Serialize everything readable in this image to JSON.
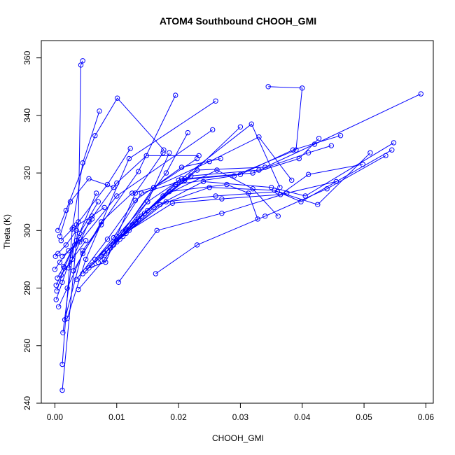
{
  "chart_data": {
    "type": "line",
    "title": "ATOM4 Southbound CHOOH_GMI",
    "xlabel": "CHOOH_GMI",
    "ylabel": "Theta (K)",
    "xlim": [
      -0.0022,
      0.0612
    ],
    "ylim": [
      240,
      366
    ],
    "x_ticks": [
      0.0,
      0.01,
      0.02,
      0.03,
      0.04,
      0.05,
      0.06
    ],
    "x_tick_labels": [
      "0.00",
      "0.01",
      "0.02",
      "0.03",
      "0.04",
      "0.05",
      "0.06"
    ],
    "y_ticks": [
      240,
      260,
      280,
      300,
      320,
      340,
      360
    ],
    "y_tick_labels": [
      "240",
      "260",
      "280",
      "300",
      "320",
      "340",
      "360"
    ],
    "grid": false,
    "legend": "none",
    "color": "#0000ff",
    "series": [
      {
        "x": [
          0.0012,
          0.0038,
          0.0042,
          0.0045
        ],
        "y": [
          244.5,
          303.0,
          357.5,
          359.0
        ]
      },
      {
        "x": [
          0.0012,
          0.0028,
          0.0045,
          0.0072
        ],
        "y": [
          253.5,
          300.5,
          323.5,
          341.5
        ]
      },
      {
        "x": [
          0.0013,
          0.0035,
          0.0085,
          0.0122
        ],
        "y": [
          264.5,
          302.0,
          316.0,
          328.5
        ]
      },
      {
        "x": [
          0.0016,
          0.0045,
          0.0135,
          0.0195
        ],
        "y": [
          269.0,
          293.0,
          320.5,
          347.0
        ]
      },
      {
        "x": [
          0.002,
          0.005,
          0.012,
          0.026
        ],
        "y": [
          269.5,
          290.0,
          325.0,
          345.0
        ]
      },
      {
        "x": [
          0.0038,
          0.008,
          0.015,
          0.0185
        ],
        "y": [
          279.5,
          290.0,
          310.0,
          327.0
        ]
      },
      {
        "x": [
          0.0045,
          0.009,
          0.018,
          0.0215
        ],
        "y": [
          285.0,
          294.0,
          320.0,
          334.0
        ]
      },
      {
        "x": [
          0.0055,
          0.0082,
          0.013,
          0.0175
        ],
        "y": [
          287.0,
          289.0,
          313.0,
          327.0
        ]
      },
      {
        "x": [
          0.0005,
          0.0018,
          0.0065,
          0.0101,
          0.0176
        ],
        "y": [
          300.0,
          307.0,
          333.0,
          346.0,
          328.0
        ]
      },
      {
        "x": [
          0.0012,
          0.004,
          0.01,
          0.0255
        ],
        "y": [
          291.0,
          296.0,
          312.0,
          335.0
        ]
      },
      {
        "x": [
          0.0022,
          0.0055,
          0.01,
          0.0148,
          0.0233
        ],
        "y": [
          287.0,
          303.0,
          316.5,
          326.0,
          326.0
        ]
      },
      {
        "x": [
          0.003,
          0.0075,
          0.0125,
          0.016,
          0.023
        ],
        "y": [
          286.0,
          303.0,
          313.0,
          315.0,
          325.0
        ]
      },
      {
        "x": [
          0.0035,
          0.0085,
          0.013,
          0.0205,
          0.0268
        ],
        "y": [
          283.0,
          297.0,
          310.5,
          322.0,
          325.0
        ]
      },
      {
        "x": [
          0.005,
          0.0095,
          0.014,
          0.021,
          0.03
        ],
        "y": [
          286.0,
          297.5,
          313.0,
          317.5,
          336.0
        ]
      },
      {
        "x": [
          0.006,
          0.01,
          0.015,
          0.0205,
          0.0318,
          0.0364
        ],
        "y": [
          288.0,
          298.0,
          310.0,
          318.0,
          337.0,
          315.0
        ]
      },
      {
        "x": [
          0.007,
          0.011,
          0.016,
          0.025,
          0.033,
          0.0383
        ],
        "y": [
          289.0,
          299.5,
          315.0,
          324.0,
          332.5,
          317.5
        ]
      },
      {
        "x": [
          0.0065,
          0.0115,
          0.0175,
          0.0262,
          0.032,
          0.0361
        ],
        "y": [
          290.0,
          300.5,
          312.0,
          321.0,
          314.5,
          305.0
        ]
      },
      {
        "x": [
          0.0075,
          0.0125,
          0.0185,
          0.0278,
          0.0313,
          0.0328
        ],
        "y": [
          291.0,
          302.0,
          313.5,
          316.0,
          313.0,
          304.0
        ]
      },
      {
        "x": [
          0.008,
          0.013,
          0.0195,
          0.029,
          0.039,
          0.04,
          0.0345
        ],
        "y": [
          292.0,
          303.0,
          316.0,
          319.0,
          328.0,
          349.5,
          350.0
        ]
      },
      {
        "x": [
          0.0085,
          0.0135,
          0.02,
          0.03,
          0.0385,
          0.0462
        ],
        "y": [
          293.0,
          304.0,
          317.5,
          319.5,
          328.0,
          333.0
        ]
      },
      {
        "x": [
          0.009,
          0.014,
          0.021,
          0.032,
          0.0395,
          0.0427
        ],
        "y": [
          294.0,
          305.0,
          318.0,
          320.0,
          325.0,
          332.0
        ]
      },
      {
        "x": [
          0.0095,
          0.0145,
          0.022,
          0.033,
          0.041,
          0.0447
        ],
        "y": [
          295.0,
          306.0,
          319.0,
          321.0,
          327.0,
          329.5
        ]
      },
      {
        "x": [
          0.01,
          0.015,
          0.023,
          0.034,
          0.042,
          0.0592
        ],
        "y": [
          296.0,
          307.0,
          321.0,
          322.0,
          330.0,
          347.5
        ]
      },
      {
        "x": [
          0.0105,
          0.016,
          0.024,
          0.035,
          0.0405,
          0.0548
        ],
        "y": [
          297.0,
          308.0,
          317.0,
          315.0,
          312.0,
          330.5
        ]
      },
      {
        "x": [
          0.011,
          0.017,
          0.025,
          0.0355,
          0.0398,
          0.0545
        ],
        "y": [
          298.0,
          309.0,
          315.0,
          314.0,
          310.0,
          328.0
        ]
      },
      {
        "x": [
          0.0115,
          0.018,
          0.026,
          0.036,
          0.0425,
          0.051
        ],
        "y": [
          299.0,
          310.0,
          312.0,
          313.5,
          309.0,
          327.0
        ]
      },
      {
        "x": [
          0.012,
          0.019,
          0.027,
          0.0365,
          0.041,
          0.0498
        ],
        "y": [
          300.0,
          309.5,
          311.0,
          312.5,
          319.5,
          323.0
        ]
      },
      {
        "x": [
          0.0103,
          0.0165,
          0.027,
          0.0375,
          0.0455
        ],
        "y": [
          282.0,
          300.0,
          306.0,
          313.0,
          317.0
        ]
      },
      {
        "x": [
          0.0163,
          0.023,
          0.034,
          0.044,
          0.0535
        ],
        "y": [
          285.0,
          295.0,
          305.0,
          314.5,
          326.0
        ]
      },
      {
        "x": [
          0.0008,
          0.0025,
          0.0055,
          0.0095
        ],
        "y": [
          298.0,
          310.0,
          318.0,
          315.0
        ]
      },
      {
        "x": [
          0.001,
          0.003,
          0.006,
          0.008
        ],
        "y": [
          296.5,
          301.0,
          305.0,
          308.0
        ]
      },
      {
        "x": [
          0.0003,
          0.0015,
          0.004,
          0.007
        ],
        "y": [
          279.0,
          287.0,
          299.0,
          310.0
        ]
      },
      {
        "x": [
          0.0002,
          0.0012,
          0.0032,
          0.006
        ],
        "y": [
          276.0,
          282.0,
          295.0,
          304.0
        ]
      },
      {
        "x": [
          0.0006,
          0.002,
          0.0045,
          0.0075
        ],
        "y": [
          273.5,
          280.0,
          292.0,
          302.0
        ]
      },
      {
        "x": [
          0.0002,
          0.001,
          0.0028,
          0.005
        ],
        "y": [
          281.0,
          284.5,
          290.0,
          296.5
        ]
      },
      {
        "x": [
          0.0,
          0.0008,
          0.0022,
          0.0042
        ],
        "y": [
          286.5,
          289.0,
          293.0,
          297.0
        ]
      },
      {
        "x": [
          0.0001,
          0.0005,
          0.0018,
          0.0035
        ],
        "y": [
          291.0,
          292.0,
          295.0,
          300.0
        ]
      },
      {
        "x": [
          0.0004,
          0.0014,
          0.0035,
          0.0067
        ],
        "y": [
          283.5,
          287.5,
          296.5,
          313.0
        ]
      }
    ]
  }
}
